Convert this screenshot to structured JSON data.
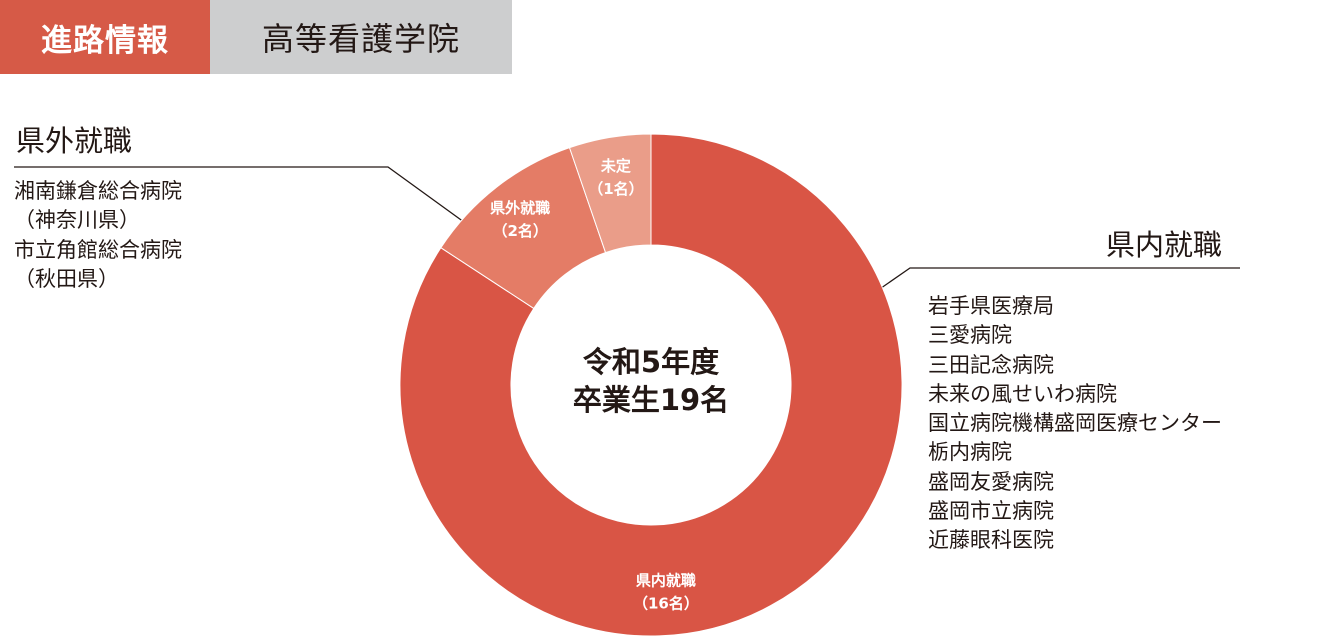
{
  "header": {
    "tag": "進路情報",
    "school": "高等看護学院"
  },
  "outside": {
    "heading": "県外就職",
    "items": [
      {
        "name": "湘南鎌倉総合病院",
        "pref": "（神奈川県）"
      },
      {
        "name": "市立角館総合病院",
        "pref": "（秋田県）"
      }
    ]
  },
  "inside": {
    "heading": "県内就職",
    "items": [
      "岩手県医療局",
      "三愛病院",
      "三田記念病院",
      "未来の風せいわ病院",
      "国立病院機構盛岡医療センター",
      "栃内病院",
      "盛岡友愛病院",
      "盛岡市立病院",
      "近藤眼科医院"
    ]
  },
  "chart_data": {
    "type": "pie",
    "donut": true,
    "center_label": [
      "令和5年度",
      "卒業生19名"
    ],
    "slices": [
      {
        "label": "県内就職",
        "count_label": "（16名）",
        "value": 16,
        "color": "#d95545"
      },
      {
        "label": "県外就職",
        "count_label": "（2名）",
        "value": 2,
        "color": "#e47c66"
      },
      {
        "label": "未定",
        "count_label": "（1名）",
        "value": 1,
        "color": "#ea9d89"
      }
    ]
  }
}
